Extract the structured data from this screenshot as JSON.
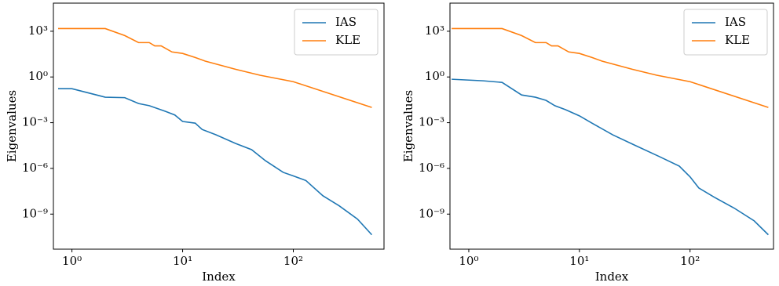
{
  "chart_data": [
    {
      "type": "line",
      "xlabel": "Index",
      "ylabel": "Eigenvalues",
      "xscale": "log",
      "yscale": "log",
      "legend": "upper right",
      "xlim": [
        0.68,
        660
      ],
      "ylim": [
        5e-12,
        70000
      ],
      "xticks": [
        {
          "value": 1,
          "label": "10⁰"
        },
        {
          "value": 10,
          "label": "10¹"
        },
        {
          "value": 100,
          "label": "10²"
        }
      ],
      "yticks": [
        {
          "value": 1e-09,
          "label": "10⁻⁹"
        },
        {
          "value": 1e-06,
          "label": "10⁻⁶"
        },
        {
          "value": 0.001,
          "label": "10⁻³"
        },
        {
          "value": 1,
          "label": "10⁰"
        },
        {
          "value": 1000,
          "label": "10³"
        }
      ],
      "series": [
        {
          "name": "IAS",
          "color": "#1f77b4",
          "x": [
            0.75,
            1,
            2,
            3,
            4,
            5,
            7,
            8.5,
            10,
            13,
            15,
            20,
            30,
            42,
            56,
            81,
            100,
            130,
            185,
            260,
            380,
            512
          ],
          "values": [
            0.17,
            0.17,
            0.047,
            0.044,
            0.018,
            0.013,
            0.0055,
            0.0032,
            0.0012,
            0.00093,
            0.00036,
            0.00016,
            4.4e-05,
            1.7e-05,
            3.2e-06,
            5.5e-07,
            3.2e-07,
            1.6e-07,
            1.6e-08,
            3.5e-09,
            4.7e-10,
            4.4e-11
          ]
        },
        {
          "name": "KLE",
          "color": "#ff7f0e",
          "x": [
            0.75,
            2,
            3,
            4,
            5,
            5.6,
            6.4,
            8,
            10,
            13,
            16,
            22,
            30,
            50,
            100,
            512
          ],
          "values": [
            1500,
            1500,
            520,
            180,
            180,
            110,
            110,
            44,
            35,
            19,
            11,
            5.9,
            3.2,
            1.3,
            0.49,
            0.01
          ]
        }
      ]
    },
    {
      "type": "line",
      "xlabel": "Index",
      "ylabel": "Eigenvalues",
      "xscale": "log",
      "yscale": "log",
      "legend": "upper right",
      "xlim": [
        0.676,
        568
      ],
      "ylim": [
        5e-12,
        70000
      ],
      "xticks": [
        {
          "value": 1,
          "label": "10⁰"
        },
        {
          "value": 10,
          "label": "10¹"
        },
        {
          "value": 100,
          "label": "10²"
        }
      ],
      "yticks": [
        {
          "value": 1e-09,
          "label": "10⁻⁹"
        },
        {
          "value": 1e-06,
          "label": "10⁻⁶"
        },
        {
          "value": 0.001,
          "label": "10⁻³"
        },
        {
          "value": 1,
          "label": "10⁰"
        },
        {
          "value": 1000,
          "label": "10³"
        }
      ],
      "series": [
        {
          "name": "IAS",
          "color": "#1f77b4",
          "x": [
            0.7,
            1.35,
            2,
            3,
            4,
            5,
            6,
            7.5,
            10,
            13,
            20,
            32,
            53,
            80,
            100,
            120,
            165,
            250,
            380,
            510
          ],
          "values": [
            0.71,
            0.56,
            0.44,
            0.066,
            0.047,
            0.029,
            0.013,
            0.0071,
            0.0028,
            0.00093,
            0.00016,
            3.2e-05,
            5.9e-06,
            1.4e-06,
            2.8e-07,
            5.2e-08,
            1.3e-08,
            2.5e-09,
            3.6e-10,
            4.4e-11
          ]
        },
        {
          "name": "KLE",
          "color": "#ff7f0e",
          "x": [
            0.7,
            2,
            3,
            4,
            5,
            5.6,
            6.4,
            8,
            10,
            13,
            16,
            22,
            30,
            50,
            100,
            510
          ],
          "values": [
            1500,
            1500,
            520,
            180,
            180,
            110,
            110,
            44,
            35,
            19,
            11,
            5.9,
            3.2,
            1.3,
            0.49,
            0.01
          ]
        }
      ]
    }
  ]
}
